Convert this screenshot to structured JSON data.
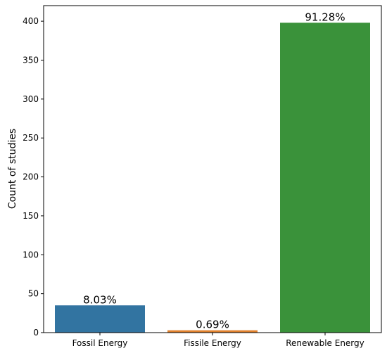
{
  "chart_data": {
    "type": "bar",
    "categories": [
      "Fossil Energy",
      "Fissile Energy",
      "Renewable Energy"
    ],
    "values": [
      35,
      3,
      398
    ],
    "data_labels": [
      "8.03%",
      "0.69%",
      "91.28%"
    ],
    "colors": [
      "#3274a1",
      "#e1812c",
      "#3a923a"
    ],
    "ylabel": "Count of studies",
    "xlabel": "",
    "ylim": [
      0,
      420
    ],
    "yticks": [
      0,
      50,
      100,
      150,
      200,
      250,
      300,
      350,
      400
    ],
    "grid": false,
    "legend": "none"
  }
}
